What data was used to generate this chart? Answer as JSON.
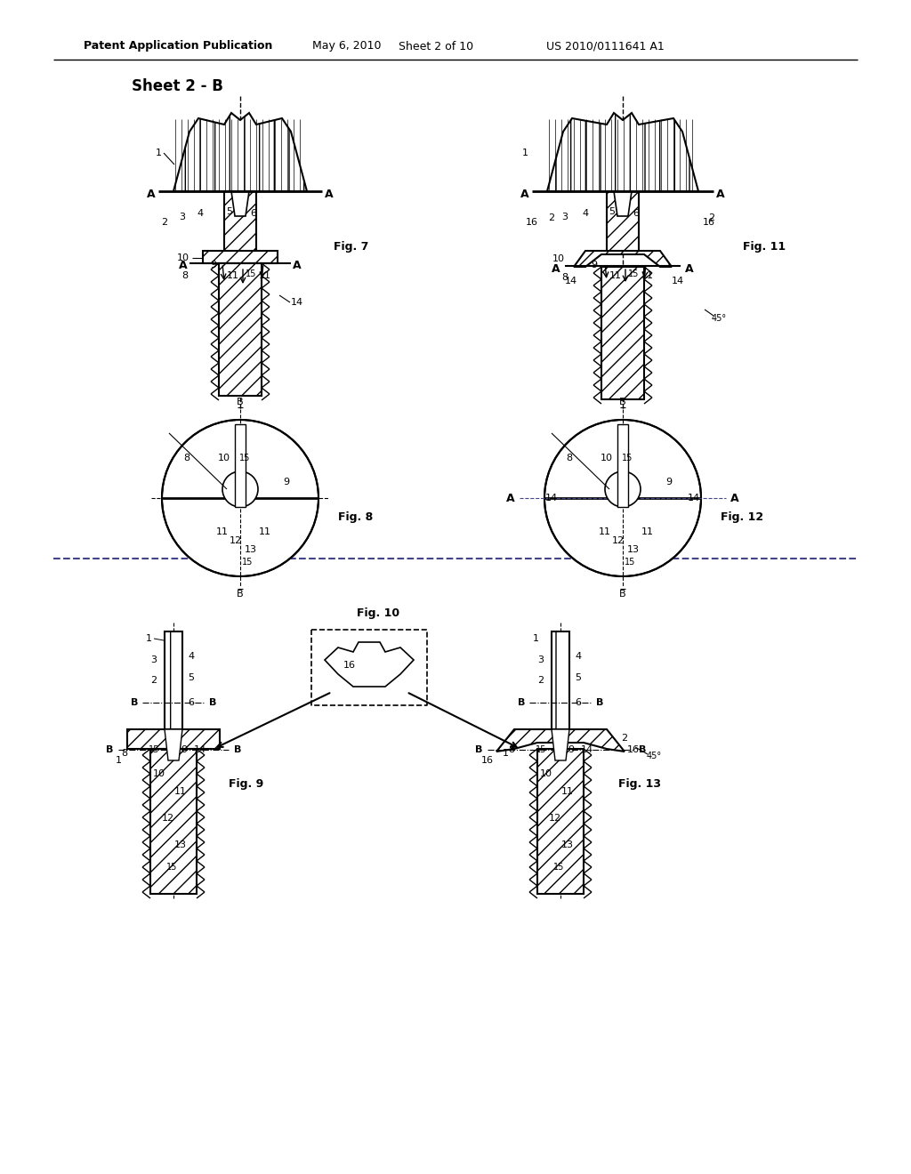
{
  "title": "Patent Application Publication",
  "date": "May 6, 2010",
  "sheet_info": "Sheet 2 of 10",
  "patent_num": "US 2010/0111641 A1",
  "sheet_label": "Sheet 2 - B",
  "background": "#ffffff",
  "line_color": "#000000",
  "fig_labels": [
    "Fig. 7",
    "Fig. 8",
    "Fig. 9",
    "Fig. 10",
    "Fig. 11",
    "Fig. 12",
    "Fig. 13"
  ]
}
